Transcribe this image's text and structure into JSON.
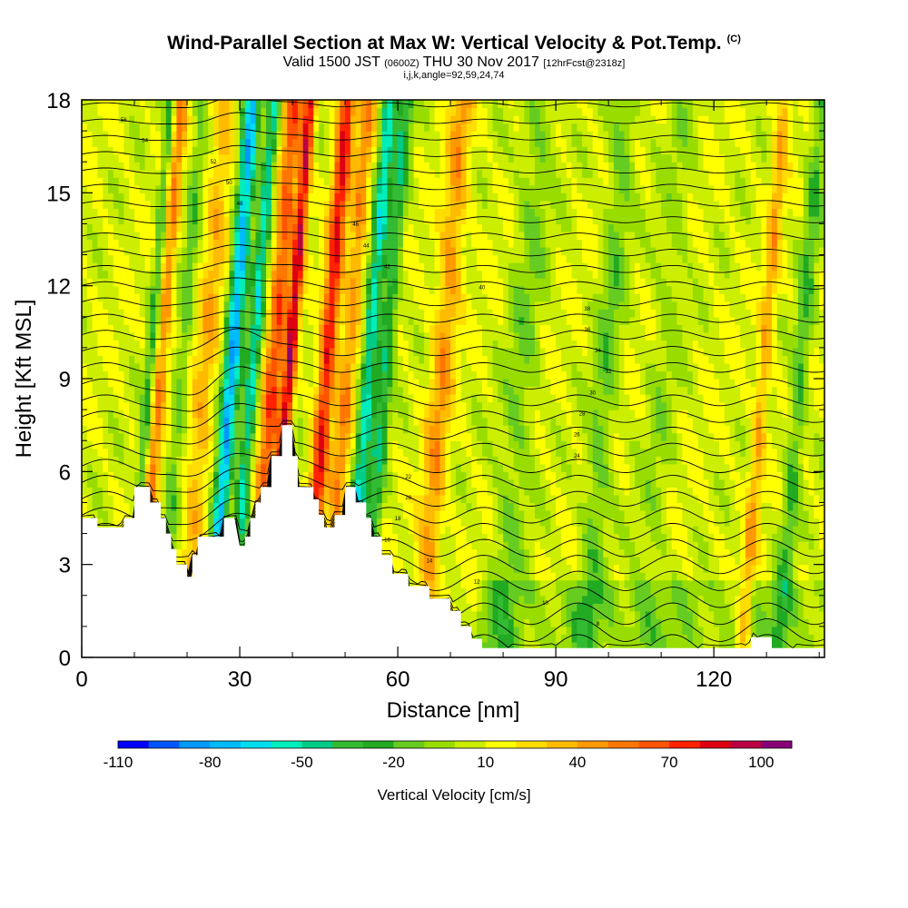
{
  "header": {
    "title": "Wind-Parallel Section at Max W: Vertical Velocity & Pot.Temp.",
    "copyright": "(C)",
    "valid_prefix": "Valid 1500 JST",
    "valid_z": "(0600Z)",
    "valid_date": "THU 30 Nov 2017",
    "forecast_info": "[12hrFcst@2318z]",
    "indices": "i,j,k,angle=92,59,24,74"
  },
  "chart_data": {
    "type": "heatmap",
    "xlabel": "Distance [nm]",
    "ylabel": "Height [Kft MSL]",
    "xlim": [
      0,
      141
    ],
    "ylim": [
      0,
      18
    ],
    "x_ticks": [
      "0",
      "30",
      "60",
      "90",
      "120"
    ],
    "y_ticks": [
      "0",
      "3",
      "6",
      "9",
      "12",
      "15",
      "18"
    ],
    "colorbar": {
      "label": "Vertical Velocity [cm/s]",
      "min": -110,
      "max": 110,
      "step": 10,
      "tick_labels": [
        "-110",
        "-80",
        "-50",
        "-20",
        "10",
        "40",
        "70",
        "100"
      ],
      "tick_values": [
        -110,
        -80,
        -50,
        -20,
        10,
        40,
        70,
        100
      ],
      "colors": [
        "#0000ff",
        "#0055ff",
        "#0099ff",
        "#00bbff",
        "#00ddee",
        "#00eebb",
        "#00cc88",
        "#33bb33",
        "#22aa22",
        "#66cc22",
        "#99dd00",
        "#ccee00",
        "#ffff00",
        "#ffdd00",
        "#ffbb00",
        "#ff9900",
        "#ff7700",
        "#ff5500",
        "#ff2200",
        "#dd0011",
        "#bb0044",
        "#880077"
      ]
    },
    "terrain_kft": [
      [
        0,
        4.5
      ],
      [
        3,
        4.5
      ],
      [
        3,
        4.2
      ],
      [
        8,
        4.2
      ],
      [
        8,
        4.5
      ],
      [
        10,
        4.5
      ],
      [
        10,
        5.5
      ],
      [
        13,
        5.5
      ],
      [
        13,
        5.0
      ],
      [
        15,
        5.0
      ],
      [
        15,
        4.5
      ],
      [
        16,
        4.5
      ],
      [
        16,
        4.0
      ],
      [
        17,
        4.0
      ],
      [
        17,
        3.5
      ],
      [
        18,
        3.5
      ],
      [
        18,
        3.0
      ],
      [
        20,
        3.0
      ],
      [
        20,
        2.6
      ],
      [
        21,
        2.6
      ],
      [
        21,
        3.3
      ],
      [
        22,
        3.3
      ],
      [
        22,
        3.9
      ],
      [
        27,
        3.9
      ],
      [
        27,
        4.5
      ],
      [
        29,
        4.5
      ],
      [
        30,
        3.6
      ],
      [
        31,
        3.6
      ],
      [
        31,
        3.9
      ],
      [
        32,
        3.9
      ],
      [
        32,
        4.5
      ],
      [
        33,
        4.5
      ],
      [
        33,
        5.0
      ],
      [
        34,
        5.0
      ],
      [
        34,
        5.5
      ],
      [
        36,
        5.5
      ],
      [
        36,
        6.5
      ],
      [
        38,
        6.5
      ],
      [
        38,
        7.5
      ],
      [
        40,
        7.5
      ],
      [
        40,
        6.5
      ],
      [
        41,
        6.5
      ],
      [
        41,
        5.5
      ],
      [
        44,
        5.5
      ],
      [
        44,
        5.1
      ],
      [
        45,
        5.1
      ],
      [
        45,
        4.6
      ],
      [
        46,
        4.6
      ],
      [
        46,
        4.2
      ],
      [
        48,
        4.2
      ],
      [
        48,
        4.6
      ],
      [
        50,
        4.6
      ],
      [
        50,
        5.5
      ],
      [
        52,
        5.5
      ],
      [
        52,
        5.0
      ],
      [
        54,
        5.0
      ],
      [
        54,
        4.5
      ],
      [
        55,
        4.5
      ],
      [
        55,
        3.9
      ],
      [
        57,
        3.9
      ],
      [
        57,
        3.3
      ],
      [
        59,
        3.3
      ],
      [
        59,
        2.7
      ],
      [
        62,
        2.7
      ],
      [
        62,
        2.3
      ],
      [
        66,
        2.3
      ],
      [
        66,
        1.9
      ],
      [
        70,
        1.9
      ],
      [
        70,
        1.5
      ],
      [
        72,
        1.5
      ],
      [
        72,
        1.0
      ],
      [
        74,
        1.0
      ],
      [
        74,
        0.6
      ],
      [
        76,
        0.6
      ],
      [
        76,
        0.3
      ],
      [
        127,
        0.3
      ],
      [
        127,
        0.65
      ],
      [
        131,
        0.65
      ],
      [
        131,
        0.3
      ],
      [
        141,
        0.3
      ]
    ],
    "theta_contour_labels": [
      "8",
      "10",
      "12",
      "14",
      "16",
      "18",
      "20",
      "22",
      "24",
      "26",
      "28",
      "30",
      "32",
      "34",
      "36",
      "38",
      "40",
      "42",
      "44",
      "46",
      "48",
      "50",
      "52",
      "54",
      "56"
    ],
    "isentrope_count": 34
  }
}
